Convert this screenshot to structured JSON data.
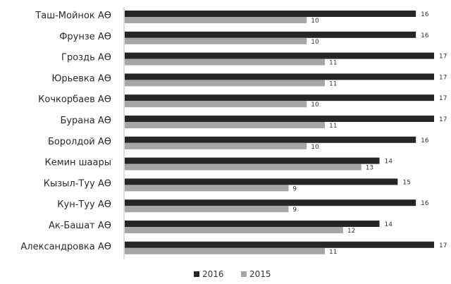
{
  "chart_data": {
    "type": "bar",
    "orientation": "horizontal",
    "categories": [
      "Таш-Мойнок АӨ",
      "Фрунзе АӨ",
      "Гроздь АӨ",
      "Юрьевка АӨ",
      "Кочкорбаев АӨ",
      "Бурана АӨ",
      "Боролдой АӨ",
      "Кемин шаары",
      "Кызыл-Туу АӨ",
      "Кун-Туу АӨ",
      "Ак-Башат АӨ",
      "Александровка АӨ"
    ],
    "series": [
      {
        "name": "2016",
        "color": "#262626",
        "values": [
          16,
          16,
          17,
          17,
          17,
          17,
          16,
          14,
          15,
          16,
          14,
          17
        ]
      },
      {
        "name": "2015",
        "color": "#a6a6a6",
        "values": [
          10,
          10,
          11,
          11,
          10,
          11,
          10,
          13,
          9,
          9,
          12,
          11
        ]
      }
    ],
    "xlim": [
      0,
      17
    ],
    "grid": false,
    "legend": {
      "placement": "bottom",
      "entries": [
        "2016",
        "2015"
      ]
    },
    "data_labels": true
  }
}
